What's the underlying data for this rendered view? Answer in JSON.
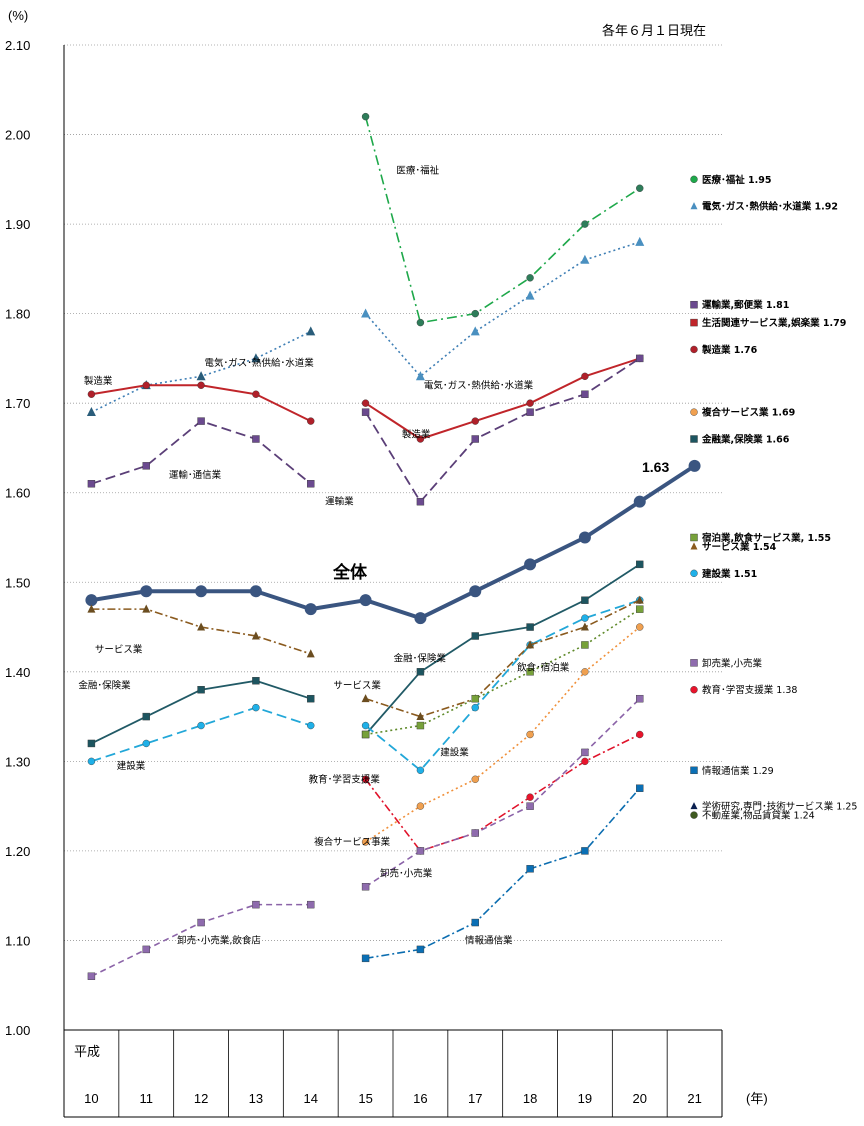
{
  "header": {
    "y_unit": "(%)",
    "note": "各年６月１日現在",
    "x_unit": "(年)",
    "era": "平成"
  },
  "chart_data": {
    "type": "line",
    "ylim": [
      1.0,
      2.1
    ],
    "yticks": [
      "1.00",
      "1.10",
      "1.20",
      "1.30",
      "1.40",
      "1.50",
      "1.60",
      "1.70",
      "1.80",
      "1.90",
      "2.00",
      "2.10"
    ],
    "categories": [
      "10",
      "11",
      "12",
      "13",
      "14",
      "15",
      "16",
      "17",
      "18",
      "19",
      "20",
      "21"
    ],
    "grid": true,
    "total_label": "全体",
    "total_end_value": "1.63",
    "series": [
      {
        "key": "total",
        "color": "#3a5580",
        "dash": "",
        "width": 4,
        "marker": "circle",
        "msize": 6,
        "segments": [
          {
            "x": [
              0,
              1,
              2,
              3,
              4,
              5,
              6,
              7,
              8,
              9,
              10,
              11
            ],
            "y": [
              1.48,
              1.49,
              1.49,
              1.49,
              1.47,
              1.48,
              1.46,
              1.49,
              1.52,
              1.55,
              1.59,
              1.63
            ]
          }
        ]
      },
      {
        "key": "medical",
        "color": "#1ea84a",
        "dash": "10,4,2,4",
        "width": 1.6,
        "marker": "circle",
        "msize": 3.5,
        "mcolor": "#2e7d5a",
        "segments": [
          {
            "x": [
              5,
              6,
              7,
              8,
              9,
              10
            ],
            "y": [
              2.02,
              1.79,
              1.8,
              1.84,
              1.9,
              1.94
            ]
          }
        ]
      },
      {
        "key": "electric",
        "color": "#3f7fb5",
        "dash": "2,3",
        "width": 1.6,
        "marker": "triangle",
        "msize": 4.5,
        "mcolor": "#4a8fc0",
        "segments": [
          {
            "x": [
              0,
              1,
              2,
              3,
              4
            ],
            "y": [
              1.69,
              1.72,
              1.73,
              1.75,
              1.78
            ]
          },
          {
            "x": [
              5,
              6,
              7,
              8,
              9,
              10
            ],
            "y": [
              1.8,
              1.73,
              1.78,
              1.82,
              1.86,
              1.88
            ]
          }
        ],
        "mcolors": [
          "#2a5d7a",
          "#4a90c0"
        ]
      },
      {
        "key": "manufacturing",
        "color": "#c0252a",
        "dash": "",
        "width": 2,
        "marker": "circle",
        "msize": 3.5,
        "mcolor": "#b0202a",
        "segments": [
          {
            "x": [
              0,
              1,
              2,
              3,
              4
            ],
            "y": [
              1.71,
              1.72,
              1.72,
              1.71,
              1.68
            ]
          },
          {
            "x": [
              5,
              6,
              7,
              8,
              9,
              10
            ],
            "y": [
              1.7,
              1.66,
              1.68,
              1.7,
              1.73,
              1.75
            ]
          }
        ]
      },
      {
        "key": "transport",
        "color": "#5b3f78",
        "dash": "10,5",
        "width": 1.8,
        "marker": "square",
        "msize": 3.5,
        "mcolor": "#6b4a8f",
        "segments": [
          {
            "x": [
              0,
              1,
              2,
              3,
              4
            ],
            "y": [
              1.61,
              1.63,
              1.68,
              1.66,
              1.61
            ]
          },
          {
            "x": [
              5,
              6,
              7,
              8,
              9,
              10
            ],
            "y": [
              1.69,
              1.59,
              1.66,
              1.69,
              1.71,
              1.75
            ]
          }
        ]
      },
      {
        "key": "finance",
        "color": "#215a66",
        "dash": "",
        "width": 1.8,
        "marker": "square",
        "msize": 3.5,
        "mcolor": "#1d5560",
        "segments": [
          {
            "x": [
              0,
              1,
              2,
              3,
              4
            ],
            "y": [
              1.32,
              1.35,
              1.38,
              1.39,
              1.37
            ]
          },
          {
            "x": [
              5,
              6,
              7,
              8,
              9,
              10
            ],
            "y": [
              1.33,
              1.4,
              1.44,
              1.45,
              1.48,
              1.52
            ]
          }
        ]
      },
      {
        "key": "construction",
        "color": "#22a7d8",
        "dash": "10,5",
        "width": 1.8,
        "marker": "circle",
        "msize": 3.5,
        "mcolor": "#1fb0e8",
        "segments": [
          {
            "x": [
              0,
              1,
              2,
              3,
              4
            ],
            "y": [
              1.3,
              1.32,
              1.34,
              1.36,
              1.34
            ]
          },
          {
            "x": [
              5,
              6,
              7,
              8,
              9,
              10
            ],
            "y": [
              1.34,
              1.29,
              1.36,
              1.43,
              1.46,
              1.48
            ]
          }
        ]
      },
      {
        "key": "service",
        "color": "#8a5a1e",
        "dash": "8,3,2,3",
        "width": 1.6,
        "marker": "triangle",
        "msize": 4,
        "mcolor": "#6b4d20",
        "segments": [
          {
            "x": [
              0,
              1,
              2,
              3,
              4
            ],
            "y": [
              1.47,
              1.47,
              1.45,
              1.44,
              1.42
            ]
          },
          {
            "x": [
              5,
              6,
              7,
              8,
              9,
              10
            ],
            "y": [
              1.37,
              1.35,
              1.37,
              1.43,
              1.45,
              1.48
            ]
          }
        ]
      },
      {
        "key": "lodging",
        "color": "#5f8a2a",
        "dash": "2,3",
        "width": 1.6,
        "marker": "square",
        "msize": 3.5,
        "mcolor": "#77a13a",
        "segments": [
          {
            "x": [
              5,
              6,
              7,
              8,
              9,
              10
            ],
            "y": [
              1.33,
              1.34,
              1.37,
              1.4,
              1.43,
              1.47
            ]
          }
        ]
      },
      {
        "key": "compound",
        "color": "#f0903a",
        "dash": "2,3",
        "width": 1.6,
        "marker": "circle",
        "msize": 3.5,
        "mcolor": "#f0a050",
        "segments": [
          {
            "x": [
              5,
              6,
              7,
              8,
              9,
              10
            ],
            "y": [
              1.21,
              1.25,
              1.28,
              1.33,
              1.4,
              1.45
            ]
          }
        ]
      },
      {
        "key": "education",
        "color": "#e0122a",
        "dash": "8,3,2,3",
        "width": 1.6,
        "marker": "circle",
        "msize": 3.5,
        "mcolor": "#e8142c",
        "segments": [
          {
            "x": [
              5,
              6,
              7,
              8,
              9,
              10
            ],
            "y": [
              1.28,
              1.2,
              1.22,
              1.26,
              1.3,
              1.33
            ]
          }
        ]
      },
      {
        "key": "wholesale",
        "color": "#8b63a8",
        "dash": "6,4",
        "width": 1.6,
        "marker": "square",
        "msize": 3.5,
        "mcolor": "#8e6bad",
        "segments": [
          {
            "x": [
              0,
              1,
              2,
              3,
              4
            ],
            "y": [
              1.06,
              1.09,
              1.12,
              1.14,
              1.14
            ]
          },
          {
            "x": [
              5,
              6,
              7,
              8,
              9,
              10
            ],
            "y": [
              1.16,
              1.2,
              1.22,
              1.25,
              1.31,
              1.37
            ]
          }
        ]
      },
      {
        "key": "info",
        "color": "#0b6db0",
        "dash": "8,3,2,3",
        "width": 1.6,
        "marker": "square",
        "msize": 3.5,
        "mcolor": "#0a6fb5",
        "segments": [
          {
            "x": [
              5,
              6,
              7,
              8,
              9,
              10
            ],
            "y": [
              1.08,
              1.09,
              1.12,
              1.18,
              1.2,
              1.27
            ]
          }
        ]
      }
    ],
    "annotations": [
      {
        "text": "医療･福祉",
        "x": 6.0,
        "y": 1.96
      },
      {
        "text": "電気･ガス･熱供給･水道業",
        "x": 2.5,
        "y": 1.745
      },
      {
        "text": "電気･ガス･熱供給･水道業",
        "x": 6.5,
        "y": 1.72
      },
      {
        "text": "製造業",
        "x": 0.3,
        "y": 1.725
      },
      {
        "text": "製造業",
        "x": 6.1,
        "y": 1.665
      },
      {
        "text": "運輸･通信業",
        "x": 1.85,
        "y": 1.62
      },
      {
        "text": "運輸業",
        "x": 4.7,
        "y": 1.59
      },
      {
        "text": "サービス業",
        "x": 0.5,
        "y": 1.425
      },
      {
        "text": "金融･保険業",
        "x": 0.2,
        "y": 1.385
      },
      {
        "text": "建設業",
        "x": 0.9,
        "y": 1.295
      },
      {
        "text": "金融･保険業",
        "x": 5.95,
        "y": 1.415
      },
      {
        "text": "飲食･宿泊業",
        "x": 8.2,
        "y": 1.405
      },
      {
        "text": "サービス業",
        "x": 4.85,
        "y": 1.385
      },
      {
        "text": "建設業",
        "x": 6.8,
        "y": 1.31
      },
      {
        "text": "教育･学習支援業",
        "x": 4.4,
        "y": 1.28
      },
      {
        "text": "複合サービス事業",
        "x": 4.5,
        "y": 1.21
      },
      {
        "text": "卸売･小売業",
        "x": 5.7,
        "y": 1.175
      },
      {
        "text": "卸売･小売業,飲食店",
        "x": 2.0,
        "y": 1.1
      },
      {
        "text": "情報通信業",
        "x": 7.25,
        "y": 1.1
      }
    ],
    "legend": [
      {
        "name": "医療･福祉",
        "value": "1.95",
        "color": "#1ea84a",
        "marker": "circle",
        "bold": true,
        "y": 1.95
      },
      {
        "name": "電気･ガス･熱供給･水道業",
        "value": "1.92",
        "color": "#4a8fc0",
        "marker": "triangle",
        "bold": true,
        "y": 1.92
      },
      {
        "name": "運輸業,郵便業",
        "value": "1.81",
        "color": "#6b4a8f",
        "marker": "square",
        "bold": true,
        "y": 1.81
      },
      {
        "name": "生活関連サービス業,娯楽業",
        "value": "1.79",
        "color": "#c0252a",
        "marker": "square",
        "bold": true,
        "y": 1.79
      },
      {
        "name": "製造業",
        "value": "1.76",
        "color": "#b0202a",
        "marker": "circle",
        "bold": true,
        "y": 1.76
      },
      {
        "name": "複合サービス業",
        "value": "1.69",
        "color": "#f0a050",
        "marker": "circle",
        "bold": true,
        "y": 1.69
      },
      {
        "name": "金融業,保険業",
        "value": "1.66",
        "color": "#1d5560",
        "marker": "square",
        "bold": true,
        "y": 1.66
      },
      {
        "name": "宿泊業,飲食サービス業,",
        "value": "1.55",
        "color": "#77a13a",
        "marker": "square",
        "bold": true,
        "y": 1.55
      },
      {
        "name": "サービス業",
        "value": "1.54",
        "color": "#8a5a1e",
        "marker": "triangle",
        "bold": true,
        "y": 1.54
      },
      {
        "name": "建設業",
        "value": "1.51",
        "color": "#1fb0e8",
        "marker": "circle",
        "bold": true,
        "y": 1.51
      },
      {
        "name": "卸売業,小売業",
        "value": "",
        "color": "#8e6bad",
        "marker": "square",
        "bold": false,
        "y": 1.41
      },
      {
        "name": "教育･学習支援業",
        "value": "1.38",
        "color": "#e8142c",
        "marker": "circle",
        "bold": false,
        "y": 1.38
      },
      {
        "name": "情報通信業",
        "value": "1.29",
        "color": "#0a6fb5",
        "marker": "square",
        "bold": false,
        "y": 1.29
      },
      {
        "name": "学術研究,専門･技術サービス業",
        "value": "1.25",
        "color": "#0a2050",
        "marker": "triangle",
        "bold": false,
        "y": 1.25
      },
      {
        "name": "不動産業,物品賃貸業",
        "value": "1.24",
        "color": "#3f5a20",
        "marker": "circle",
        "bold": false,
        "y": 1.24
      }
    ]
  }
}
